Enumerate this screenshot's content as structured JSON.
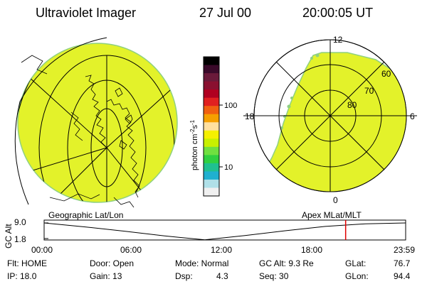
{
  "header": {
    "title": "Ultraviolet Imager",
    "date": "27 Jul 00",
    "time": "20:00:05 UT"
  },
  "colorbar": {
    "label": "photon cm",
    "label_sup1": "-2",
    "label_mid": "s",
    "label_sup2": "-1",
    "ticks": [
      "100",
      "10"
    ],
    "colors": [
      "#000000",
      "#3a0a2a",
      "#6a1a3a",
      "#8a1030",
      "#b00020",
      "#e02020",
      "#f06010",
      "#f5a000",
      "#ffe0a0",
      "#f5f000",
      "#c8f000",
      "#70e040",
      "#30d040",
      "#20c090",
      "#20b0d0",
      "#b0e0e8",
      "#f0f0f0"
    ]
  },
  "left_panel": {
    "caption": "Geographic Lat/Lon",
    "fill_color": "#e3f22a"
  },
  "right_panel": {
    "caption": "Apex MLat/MLT",
    "fill_color": "#e3f22a",
    "mlt_labels": {
      "top": "12",
      "left": "18",
      "right": "6",
      "bottom": "0"
    },
    "lat_labels": [
      "60",
      "70",
      "80"
    ]
  },
  "altitude_plot": {
    "ylabel": "GC Alt",
    "y_ticks": [
      "9.0",
      "1.8"
    ],
    "x_ticks": [
      "00:00",
      "06:00",
      "12:00",
      "18:00",
      "23:59"
    ],
    "curve_y": [
      9.0,
      7.2,
      5.2,
      3.0,
      1.2,
      3.2,
      5.4,
      7.4,
      8.6,
      9.0
    ],
    "current_time_fraction": 0.834,
    "marker_color": "#e00000"
  },
  "status": {
    "flt": "Flt: HOME",
    "ip": "IP: 18.0",
    "door": "Door: Open",
    "gain": "Gain: 13",
    "mode": "Mode: Normal",
    "dsp_label": "Dsp:",
    "dsp_value": "4.3",
    "gcalt": "GC Alt: 9.3 Re",
    "seq": "Seq: 30",
    "glat_label": "GLat:",
    "glat_value": "76.7",
    "glon_label": "GLon:",
    "glon_value": "94.4"
  }
}
